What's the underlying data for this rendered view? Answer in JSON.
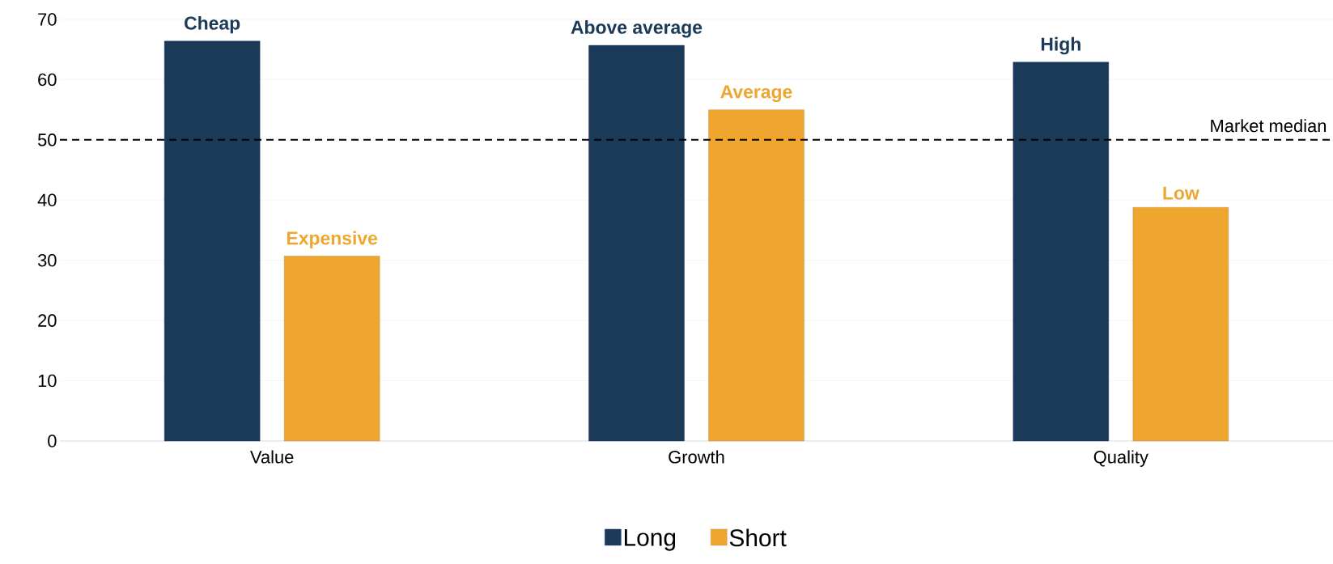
{
  "chart_data": {
    "type": "bar",
    "categories": [
      "Value",
      "Growth",
      "Quality"
    ],
    "series": [
      {
        "name": "Long",
        "color": "#1b3a57",
        "values": [
          66.4,
          65.7,
          62.9
        ],
        "value_labels": [
          "Cheap",
          "Above average",
          "High"
        ]
      },
      {
        "name": "Short",
        "color": "#eea62f",
        "values": [
          30.7,
          55.0,
          38.8
        ],
        "value_labels": [
          "Expensive",
          "Average",
          "Low"
        ]
      }
    ],
    "ylim": [
      0,
      70
    ],
    "yticks": [
      0,
      10,
      20,
      30,
      40,
      50,
      60,
      70
    ],
    "grid": "y",
    "legend": "bottom",
    "ref_lines": [
      {
        "axis": "y",
        "value": 50,
        "label": "Market median",
        "color": "#000000",
        "line_style": "dashed"
      }
    ]
  }
}
